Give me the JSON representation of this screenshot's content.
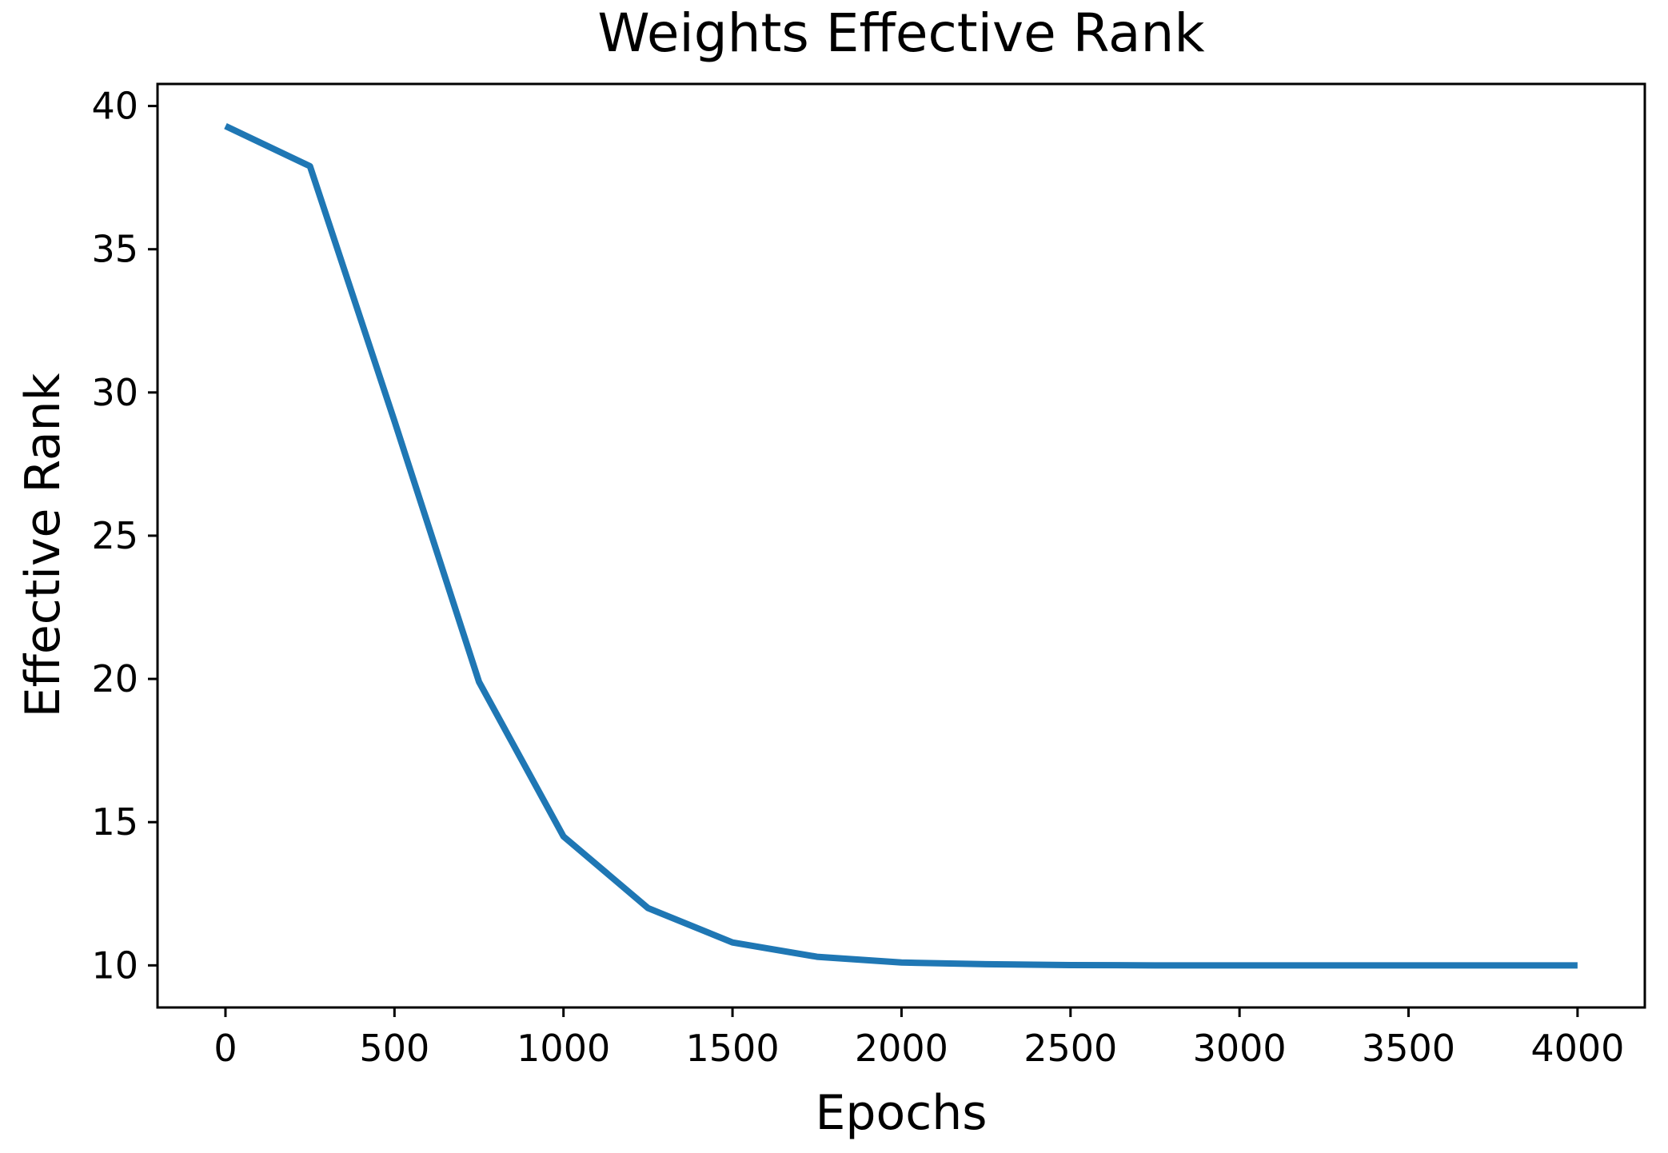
{
  "chart_data": {
    "type": "line",
    "title": "Weights Effective Rank",
    "xlabel": "Epochs",
    "ylabel": "Effective Rank",
    "x": [
      0,
      250,
      500,
      750,
      1000,
      1250,
      1500,
      1750,
      2000,
      2250,
      2500,
      2750,
      3000,
      3250,
      3500,
      3750,
      4000
    ],
    "series": [
      {
        "name": "effective-rank",
        "color": "#1f77b4",
        "values": [
          39.3,
          37.9,
          29.0,
          19.9,
          14.5,
          12.0,
          10.8,
          10.3,
          10.1,
          10.04,
          10.01,
          10.0,
          10.0,
          10.0,
          10.0,
          10.0,
          10.0
        ]
      }
    ],
    "xticks": [
      0,
      500,
      1000,
      1500,
      2000,
      2500,
      3000,
      3500,
      4000
    ],
    "yticks": [
      10,
      15,
      20,
      25,
      30,
      35,
      40
    ],
    "xlim": [
      -201,
      4199
    ],
    "ylim": [
      8.53,
      40.77
    ],
    "grid": false,
    "legend_position": "none",
    "axis_color": "#000000"
  }
}
